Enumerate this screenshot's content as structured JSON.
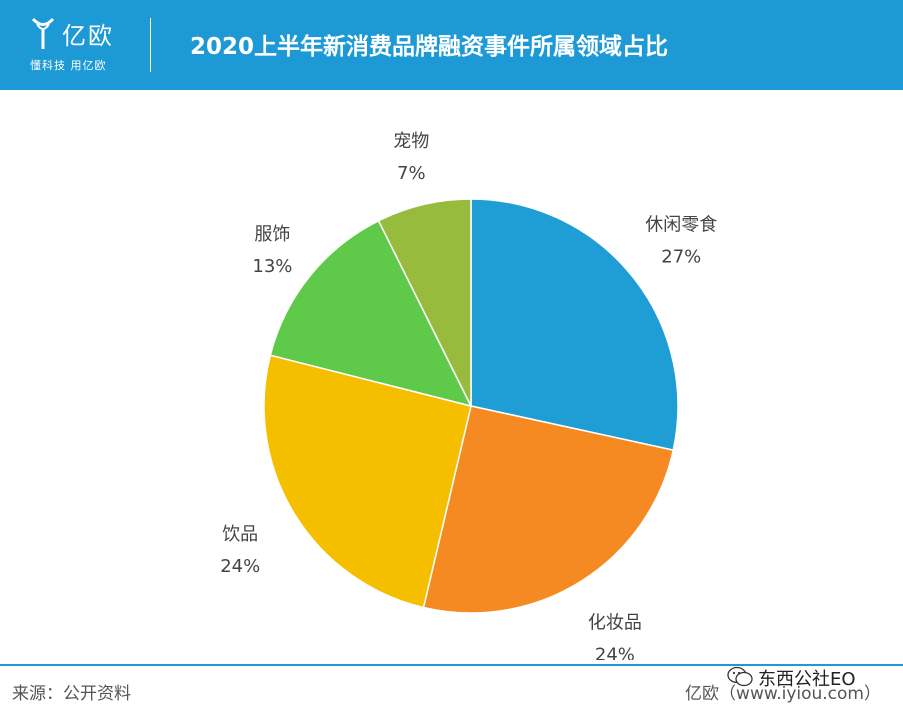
{
  "header": {
    "logo_name": "亿欧",
    "logo_slogan": "懂科技 用亿欧",
    "title": "2020上半年新消费品牌融资事件所属领域占比",
    "background_color": "#1d9ad6"
  },
  "chart_data": {
    "type": "pie",
    "title": "2020上半年新消费品牌融资事件所属领域占比",
    "categories": [
      "休闲零食",
      "化妆品",
      "饮品",
      "服饰",
      "宠物"
    ],
    "values": [
      27,
      24,
      24,
      13,
      7
    ],
    "value_labels": [
      "27%",
      "24%",
      "24%",
      "13%",
      "7%"
    ],
    "unit": "%",
    "colors": [
      "#1f9ed5",
      "#f58a22",
      "#f5bf00",
      "#5fc94a",
      "#97bb3d"
    ],
    "start": "12 o'clock, clockwise",
    "legend": "none (labels beside slices)"
  },
  "footer": {
    "source": "来源：公开资料",
    "brand": "亿欧（www.iyiou.com）",
    "watermark_text": "东西公社EO",
    "watermark_icon": "wechat-icon"
  }
}
